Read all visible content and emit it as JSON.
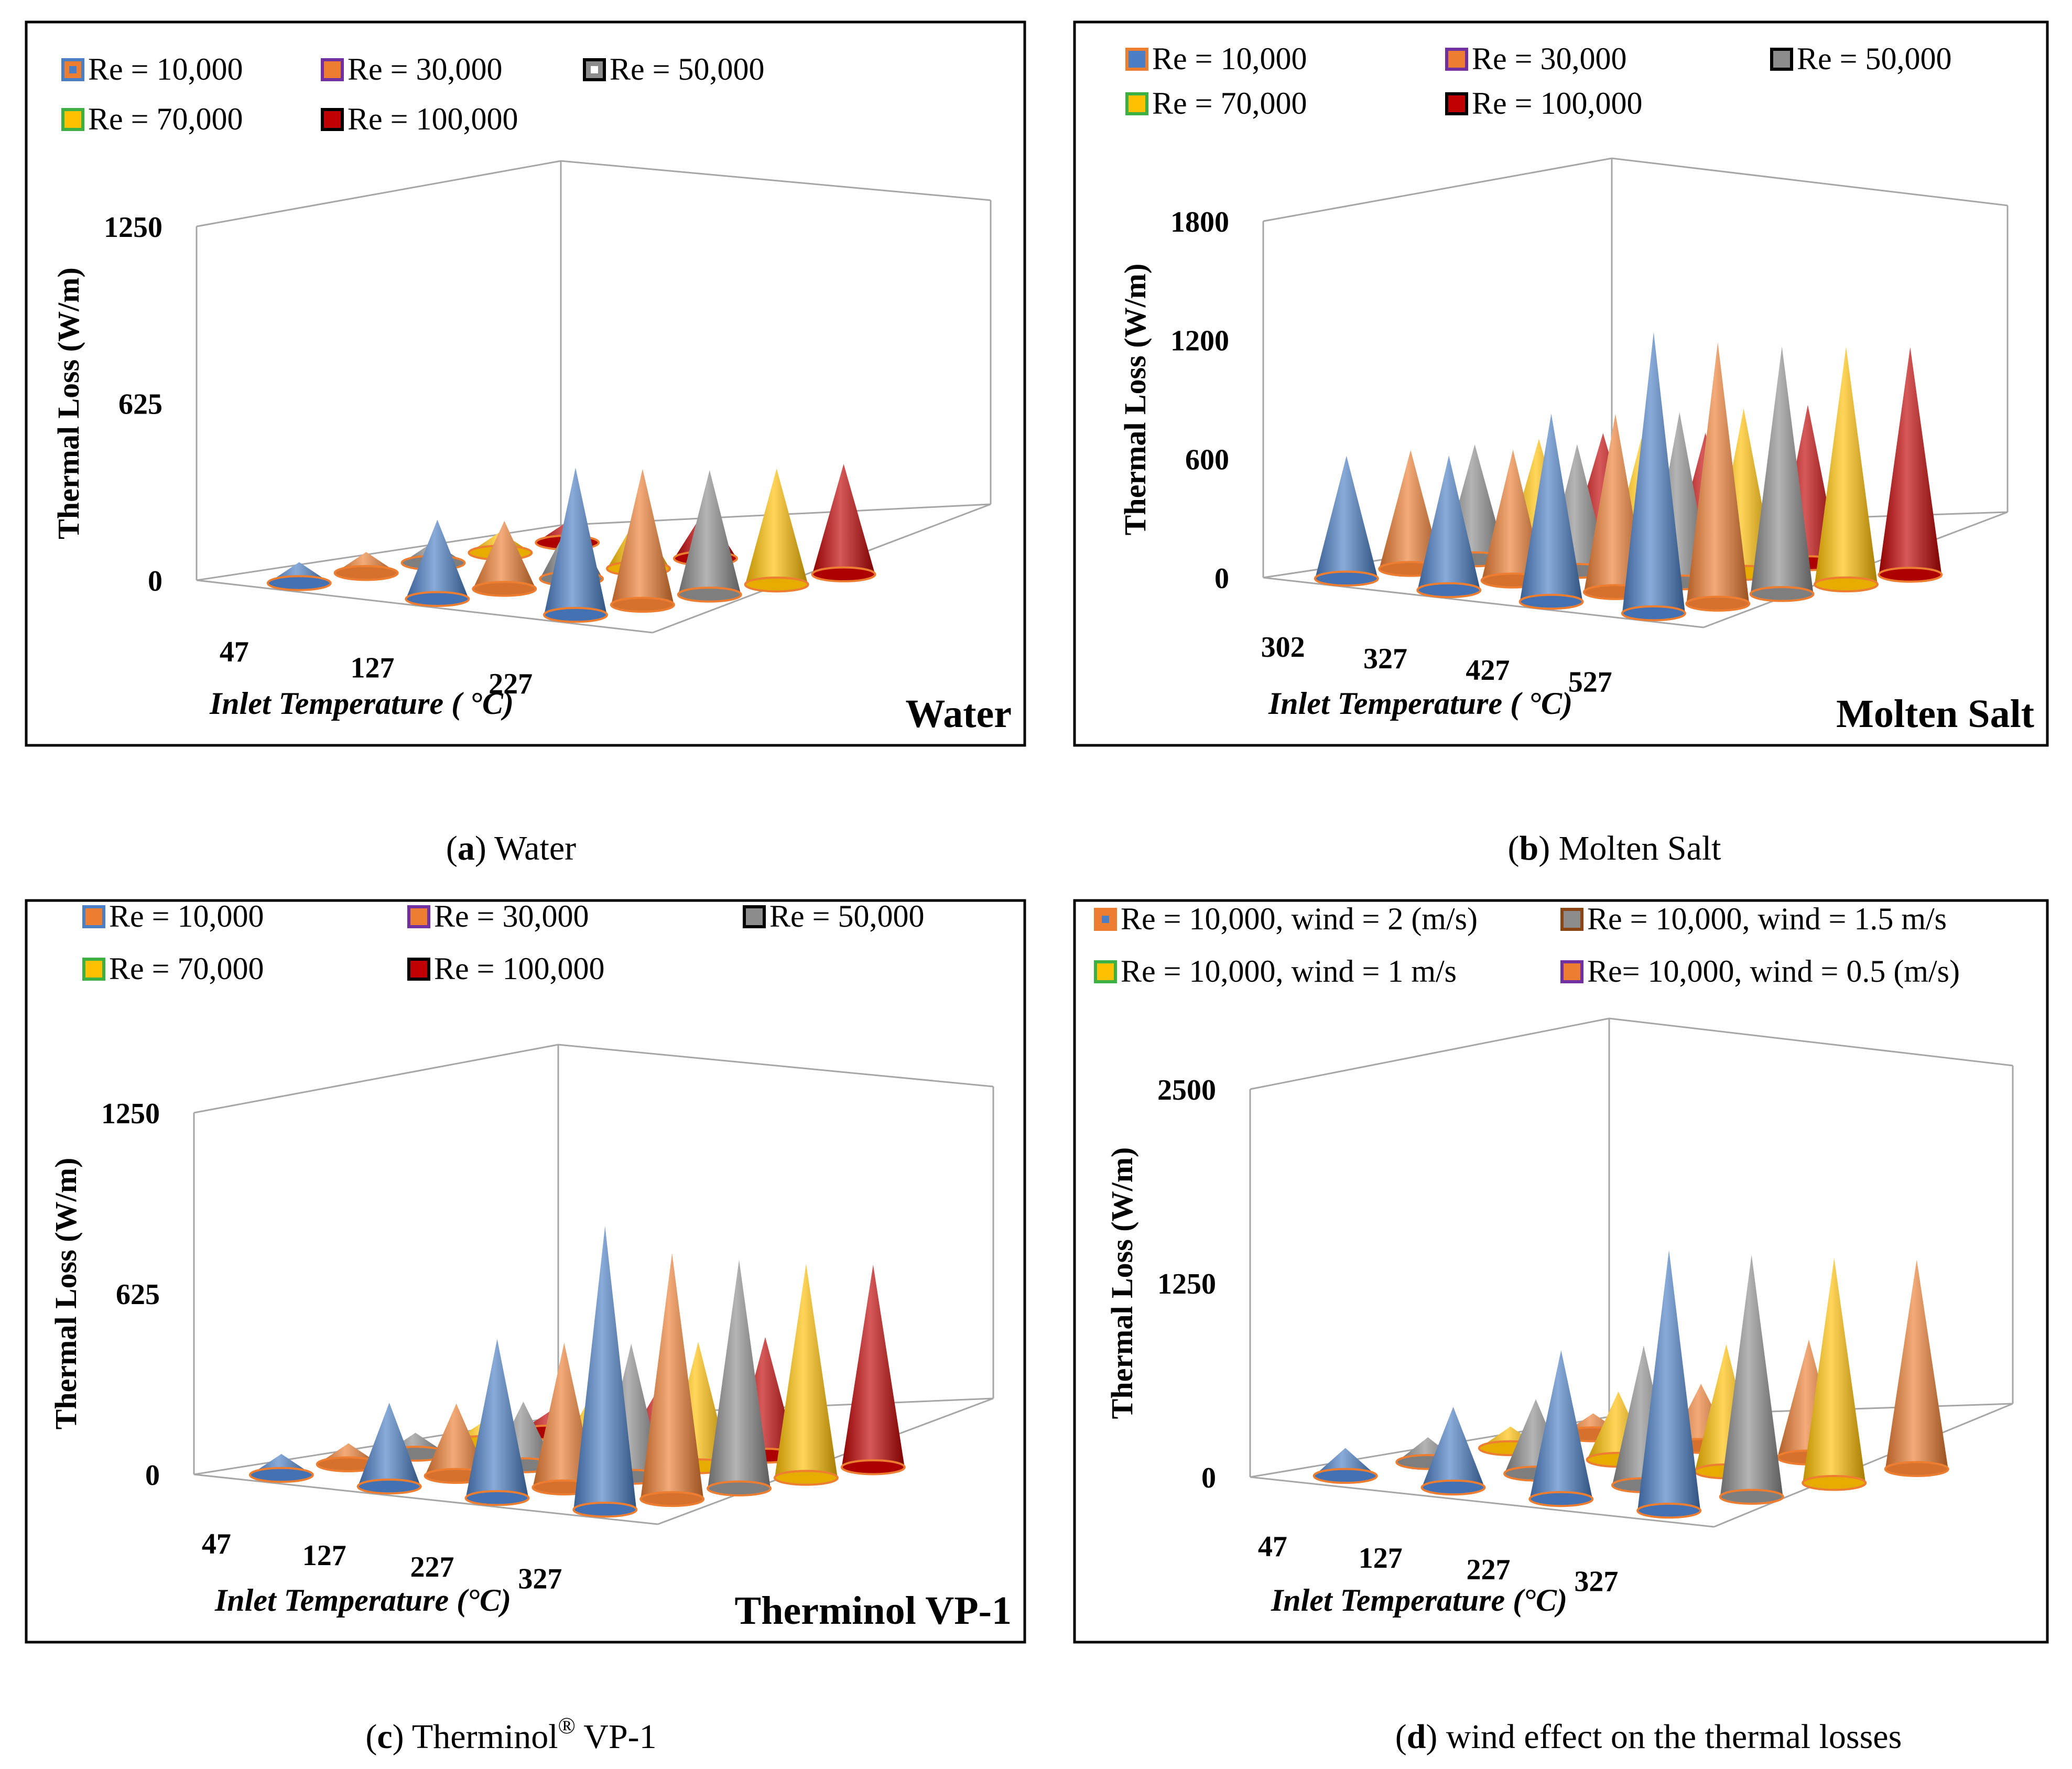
{
  "colors": {
    "blue": "#4a7ec5",
    "orange": "#ed7d31",
    "gray": "#8c8c8c",
    "yellow": "#ffc000",
    "red": "#c00000",
    "purple": "#7030a0",
    "green": "#3cb043",
    "brown": "#8b4513"
  },
  "chart_data": [
    {
      "type": "3d-cone",
      "fluid_label": "Water",
      "caption_letter": "a",
      "caption_text": " Water",
      "ylabel": "Thermal Loss (W/m)",
      "xlabel": "Inlet Temperature ( °C)",
      "y_ticks": [
        "0",
        "625",
        "1250"
      ],
      "ylim": [
        0,
        1250
      ],
      "categories": [
        "47",
        "127",
        "227"
      ],
      "series": [
        {
          "name": "Re = 10,000",
          "fill": "#4a7ec5",
          "values": [
            60,
            280,
            520
          ]
        },
        {
          "name": "Re = 30,000",
          "fill": "#ed7d31",
          "values": [
            40,
            240,
            480
          ]
        },
        {
          "name": "Re = 50,000",
          "fill": "#8c8c8c",
          "values": [
            30,
            210,
            440
          ]
        },
        {
          "name": "Re = 70,000",
          "fill": "#ffc000",
          "values": [
            25,
            190,
            410
          ]
        },
        {
          "name": "Re = 100,000",
          "fill": "#c00000",
          "values": [
            20,
            175,
            390
          ]
        }
      ],
      "legend": [
        {
          "label": "Re = 10,000",
          "fill": "#ed7d31",
          "inner": "#4a7ec5",
          "border": "#4a7ec5"
        },
        {
          "label": "Re = 30,000",
          "fill": "#ed7d31",
          "inner": "#ed7d31",
          "border": "#7030a0"
        },
        {
          "label": "Re = 50,000",
          "fill": "#8c8c8c",
          "inner": "#ffffff",
          "border": "#000000"
        },
        {
          "label": "Re = 70,000",
          "fill": "#ffc000",
          "inner": "#ffc000",
          "border": "#3cb043"
        },
        {
          "label": "Re = 100,000",
          "fill": "#c00000",
          "inner": "#c00000",
          "border": "#000000"
        }
      ]
    },
    {
      "type": "3d-cone",
      "fluid_label": "Molten Salt",
      "caption_letter": "b",
      "caption_text": " Molten Salt",
      "ylabel": "Thermal Loss (W/m)",
      "xlabel": "Inlet Temperature ( °C)",
      "y_ticks": [
        "0",
        "600",
        "1200",
        "1800"
      ],
      "ylim": [
        0,
        1800
      ],
      "categories": [
        "302",
        "327",
        "427",
        "527"
      ],
      "series": [
        {
          "name": "Re = 10,000",
          "fill": "#4a7ec5",
          "values": [
            620,
            680,
            950,
            1420
          ]
        },
        {
          "name": "Re = 30,000",
          "fill": "#ed7d31",
          "values": [
            600,
            660,
            900,
            1320
          ]
        },
        {
          "name": "Re = 50,000",
          "fill": "#8c8c8c",
          "values": [
            580,
            640,
            860,
            1250
          ]
        },
        {
          "name": "Re = 70,000",
          "fill": "#ffc000",
          "values": [
            560,
            620,
            830,
            1200
          ]
        },
        {
          "name": "Re = 100,000",
          "fill": "#c00000",
          "values": [
            540,
            600,
            800,
            1150
          ]
        }
      ],
      "legend": [
        {
          "label": "Re = 10,000",
          "fill": "#4a7ec5",
          "inner": "#4a7ec5",
          "border": "#ed7d31"
        },
        {
          "label": "Re = 30,000",
          "fill": "#ed7d31",
          "inner": "#ed7d31",
          "border": "#7030a0"
        },
        {
          "label": "Re = 50,000",
          "fill": "#8c8c8c",
          "inner": "#8c8c8c",
          "border": "#000000"
        },
        {
          "label": "Re = 70,000",
          "fill": "#ffc000",
          "inner": "#ffc000",
          "border": "#3cb043"
        },
        {
          "label": "Re = 100,000",
          "fill": "#c00000",
          "inner": "#c00000",
          "border": "#000000"
        }
      ]
    },
    {
      "type": "3d-cone",
      "fluid_label": "Therminol VP-1",
      "caption_letter": "c",
      "caption_text": " Therminol",
      "caption_sup": "®",
      "caption_tail": " VP-1",
      "ylabel": "Thermal Loss (W/m)",
      "xlabel": "Inlet Temperature (°C)",
      "y_ticks": [
        "0",
        "625",
        "1250"
      ],
      "ylim": [
        0,
        1250
      ],
      "categories": [
        "47",
        "127",
        "227",
        "327"
      ],
      "series": [
        {
          "name": "Re = 10,000",
          "fill": "#4a7ec5",
          "values": [
            70,
            290,
            550,
            980
          ]
        },
        {
          "name": "Re = 30,000",
          "fill": "#ed7d31",
          "values": [
            50,
            250,
            500,
            850
          ]
        },
        {
          "name": "Re = 50,000",
          "fill": "#8c8c8c",
          "values": [
            40,
            220,
            460,
            790
          ]
        },
        {
          "name": "Re = 70,000",
          "fill": "#ffc000",
          "values": [
            30,
            200,
            430,
            740
          ]
        },
        {
          "name": "Re = 100,000",
          "fill": "#c00000",
          "values": [
            25,
            185,
            410,
            700
          ]
        }
      ],
      "legend": [
        {
          "label": "Re = 10,000",
          "fill": "#ed7d31",
          "inner": "#ed7d31",
          "border": "#4a7ec5"
        },
        {
          "label": "Re = 30,000",
          "fill": "#ed7d31",
          "inner": "#ed7d31",
          "border": "#7030a0"
        },
        {
          "label": "Re = 50,000",
          "fill": "#8c8c8c",
          "inner": "#8c8c8c",
          "border": "#000000"
        },
        {
          "label": "Re = 70,000",
          "fill": "#ffc000",
          "inner": "#ffc000",
          "border": "#3cb043"
        },
        {
          "label": "Re = 100,000",
          "fill": "#c00000",
          "inner": "#c00000",
          "border": "#000000"
        }
      ]
    },
    {
      "type": "3d-cone",
      "fluid_label": "",
      "caption_letter": "d",
      "caption_text": " wind effect on the thermal losses",
      "ylabel": "Thermal Loss (W/m)",
      "xlabel": "Inlet Temperature (°C)",
      "y_ticks": [
        "0",
        "1250",
        "2500"
      ],
      "ylim": [
        0,
        2500
      ],
      "categories": [
        "47",
        "127",
        "227",
        "327"
      ],
      "series": [
        {
          "name": "Re = 10,000, wind = 2 (m/s)",
          "fill": "#4a7ec5",
          "values": [
            180,
            520,
            960,
            1680
          ]
        },
        {
          "name": "Re = 10,000, wind = 1.5 m/s",
          "fill": "#8c8c8c",
          "values": [
            160,
            480,
            900,
            1560
          ]
        },
        {
          "name": "Re = 10,000, wind = 1 m/s",
          "fill": "#ffc000",
          "values": [
            140,
            440,
            820,
            1450
          ]
        },
        {
          "name": "Re= 10,000, wind = 0.5 (m/s)",
          "fill": "#ed7d31",
          "values": [
            120,
            400,
            760,
            1350
          ]
        }
      ],
      "legend": [
        {
          "label": "Re = 10,000, wind = 2 (m/s)",
          "fill": "#ed7d31",
          "inner": "#4a7ec5",
          "border": "#ed7d31"
        },
        {
          "label": "Re = 10,000, wind = 1.5 m/s",
          "fill": "#8c8c8c",
          "inner": "#8c8c8c",
          "border": "#8b4513"
        },
        {
          "label": "Re = 10,000, wind = 1 m/s",
          "fill": "#ffc000",
          "inner": "#ffc000",
          "border": "#3cb043"
        },
        {
          "label": "Re= 10,000, wind = 0.5 (m/s)",
          "fill": "#ed7d31",
          "inner": "#ed7d31",
          "border": "#7030a0"
        }
      ]
    }
  ]
}
